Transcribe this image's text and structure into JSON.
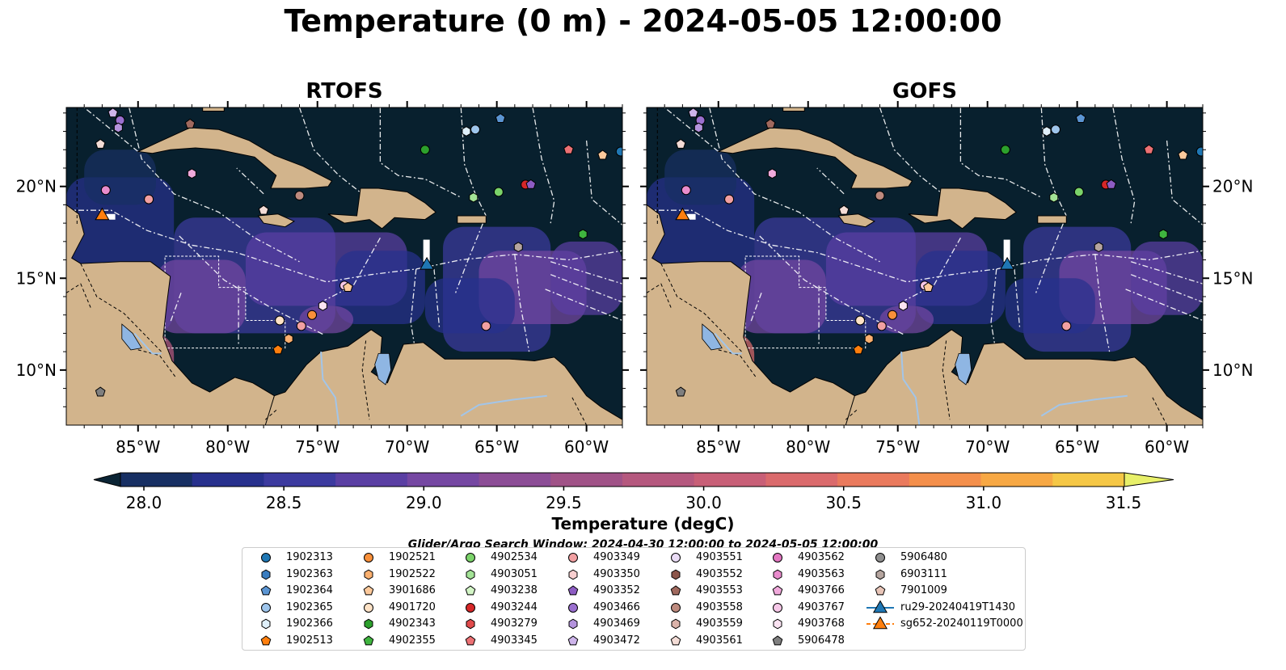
{
  "title": "Temperature (0 m) - 2024-05-05 12:00:00",
  "panels": [
    {
      "name": "rtofs",
      "title": "RTOFS"
    },
    {
      "name": "gofs",
      "title": "GOFS"
    }
  ],
  "map": {
    "lon_range": [
      -89.0,
      -58.0
    ],
    "lat_range": [
      7.0,
      24.3
    ],
    "lon_ticks": [
      "85°W",
      "80°W",
      "75°W",
      "70°W",
      "65°W",
      "60°W"
    ],
    "lon_tick_values": [
      -85,
      -80,
      -75,
      -70,
      -65,
      -60
    ],
    "lat_ticks": [
      "20°N",
      "15°N",
      "10°N"
    ],
    "lat_tick_values": [
      20,
      15,
      10
    ],
    "colors": {
      "ocean_deep": "#08202e",
      "land": "#d2b48c",
      "lake": "#8fb6e3",
      "eez": "#ffffff"
    }
  },
  "colorbar": {
    "label": "Temperature (degC)",
    "min": 28.0,
    "max": 31.5,
    "step": 0.25,
    "ticks": [
      "28.0",
      "28.5",
      "29.0",
      "29.5",
      "30.0",
      "30.5",
      "31.0",
      "31.5"
    ],
    "colors": [
      "#0b2435",
      "#172f63",
      "#27308d",
      "#3c3a9f",
      "#5a3fa3",
      "#7547a2",
      "#8c4d96",
      "#a05287",
      "#b5587e",
      "#c85f77",
      "#da6a6c",
      "#ea7a5d",
      "#f48f4b",
      "#f7a844",
      "#f5c746",
      "#e8f06a"
    ]
  },
  "search_window": "Glider/Argo Search Window: 2024-04-30 12:00:00 to 2024-05-05 12:00:00",
  "legend": [
    {
      "label": "1902313",
      "marker": "circle",
      "color": "#1f77b4"
    },
    {
      "label": "1902363",
      "marker": "hexagon",
      "color": "#3a7dc0"
    },
    {
      "label": "1902364",
      "marker": "pentagon",
      "color": "#5b95d3"
    },
    {
      "label": "1902365",
      "marker": "circle",
      "color": "#9ec5ec"
    },
    {
      "label": "1902366",
      "marker": "hexagon",
      "color": "#dff0fb"
    },
    {
      "label": "1902513",
      "marker": "pentagon",
      "color": "#ff7f0e"
    },
    {
      "label": "1902521",
      "marker": "circle",
      "color": "#f9903a"
    },
    {
      "label": "1902522",
      "marker": "hexagon",
      "color": "#fbb06f"
    },
    {
      "label": "3901686",
      "marker": "pentagon",
      "color": "#fcc99b"
    },
    {
      "label": "4901720",
      "marker": "circle",
      "color": "#fde2c6"
    },
    {
      "label": "4902343",
      "marker": "hexagon",
      "color": "#2ca02c"
    },
    {
      "label": "4902355",
      "marker": "pentagon",
      "color": "#3fb43f"
    },
    {
      "label": "4902534",
      "marker": "circle",
      "color": "#7bd36a"
    },
    {
      "label": "4903051",
      "marker": "hexagon",
      "color": "#a3e396"
    },
    {
      "label": "4903238",
      "marker": "pentagon",
      "color": "#d3f5c6"
    },
    {
      "label": "4903244",
      "marker": "circle",
      "color": "#d62728"
    },
    {
      "label": "4903279",
      "marker": "hexagon",
      "color": "#e04a4b"
    },
    {
      "label": "4903345",
      "marker": "pentagon",
      "color": "#ec7174"
    },
    {
      "label": "4903349",
      "marker": "circle",
      "color": "#f2a0a2"
    },
    {
      "label": "4903350",
      "marker": "hexagon",
      "color": "#f8cfd0"
    },
    {
      "label": "4903352",
      "marker": "pentagon",
      "color": "#8d5cc3"
    },
    {
      "label": "4903466",
      "marker": "circle",
      "color": "#9a6fcf"
    },
    {
      "label": "4903469",
      "marker": "hexagon",
      "color": "#b493dd"
    },
    {
      "label": "4903472",
      "marker": "pentagon",
      "color": "#cdb4ea"
    },
    {
      "label": "4903551",
      "marker": "circle",
      "color": "#eadcf6"
    },
    {
      "label": "4903552",
      "marker": "hexagon",
      "color": "#8c564b"
    },
    {
      "label": "4903553",
      "marker": "pentagon",
      "color": "#a0695e"
    },
    {
      "label": "4903558",
      "marker": "circle",
      "color": "#bd8a7e"
    },
    {
      "label": "4903559",
      "marker": "hexagon",
      "color": "#dbb3aa"
    },
    {
      "label": "4903561",
      "marker": "pentagon",
      "color": "#f3dcd6"
    },
    {
      "label": "4903562",
      "marker": "circle",
      "color": "#e377c2"
    },
    {
      "label": "4903563",
      "marker": "hexagon",
      "color": "#e98ccd"
    },
    {
      "label": "4903766",
      "marker": "pentagon",
      "color": "#f0a9db"
    },
    {
      "label": "4903767",
      "marker": "circle",
      "color": "#f6c8e8"
    },
    {
      "label": "4903768",
      "marker": "hexagon",
      "color": "#fbe3f2"
    },
    {
      "label": "5906478",
      "marker": "pentagon",
      "color": "#7f7f7f"
    },
    {
      "label": "5906480",
      "marker": "circle",
      "color": "#8f8f8f"
    },
    {
      "label": "6903111",
      "marker": "hexagon",
      "color": "#b5a59f"
    },
    {
      "label": "7901009",
      "marker": "pentagon",
      "color": "#e8c5b8"
    },
    {
      "label": "ru29-20240419T1430",
      "marker": "triangle",
      "color": "#1f77b4"
    },
    {
      "label": "sg652-20240119T0000",
      "marker": "triangle",
      "color": "#ff7f0e"
    }
  ],
  "floats": [
    {
      "lon": -86.4,
      "lat": 24.0,
      "marker": "pentagon",
      "color": "#cdb4ea"
    },
    {
      "lon": -86.0,
      "lat": 23.6,
      "marker": "circle",
      "color": "#9a6fcf"
    },
    {
      "lon": -86.1,
      "lat": 23.2,
      "marker": "hexagon",
      "color": "#b493dd"
    },
    {
      "lon": -82.1,
      "lat": 23.4,
      "marker": "pentagon",
      "color": "#a0695e"
    },
    {
      "lon": -87.1,
      "lat": 22.3,
      "marker": "pentagon",
      "color": "#f3dcd6"
    },
    {
      "lon": -82.0,
      "lat": 20.7,
      "marker": "hexagon",
      "color": "#f0a9db"
    },
    {
      "lon": -86.8,
      "lat": 19.8,
      "marker": "circle",
      "color": "#e98ccd"
    },
    {
      "lon": -84.4,
      "lat": 19.3,
      "marker": "circle",
      "color": "#f2a0a2"
    },
    {
      "lon": -76.0,
      "lat": 19.5,
      "marker": "circle",
      "color": "#bd8a7e"
    },
    {
      "lon": -78.0,
      "lat": 18.7,
      "marker": "pentagon",
      "color": "#f3dcd6"
    },
    {
      "lon": -66.7,
      "lat": 23.0,
      "marker": "hexagon",
      "color": "#dff0fb"
    },
    {
      "lon": -66.2,
      "lat": 23.1,
      "marker": "circle",
      "color": "#9ec5ec"
    },
    {
      "lon": -64.8,
      "lat": 23.7,
      "marker": "pentagon",
      "color": "#5b95d3"
    },
    {
      "lon": -69.0,
      "lat": 22.0,
      "marker": "circle",
      "color": "#2ca02c"
    },
    {
      "lon": -66.3,
      "lat": 19.4,
      "marker": "hexagon",
      "color": "#a3e396"
    },
    {
      "lon": -64.9,
      "lat": 19.7,
      "marker": "circle",
      "color": "#7bd36a"
    },
    {
      "lon": -63.4,
      "lat": 20.1,
      "marker": "circle",
      "color": "#d62728"
    },
    {
      "lon": -63.1,
      "lat": 20.1,
      "marker": "pentagon",
      "color": "#8d5cc3"
    },
    {
      "lon": -61.0,
      "lat": 22.0,
      "marker": "pentagon",
      "color": "#ec7174"
    },
    {
      "lon": -59.1,
      "lat": 21.7,
      "marker": "pentagon",
      "color": "#fcc99b"
    },
    {
      "lon": -58.1,
      "lat": 21.9,
      "marker": "circle",
      "color": "#1f77b4"
    },
    {
      "lon": -60.2,
      "lat": 17.4,
      "marker": "hexagon",
      "color": "#3fb43f"
    },
    {
      "lon": -63.8,
      "lat": 16.7,
      "marker": "hexagon",
      "color": "#b5a59f"
    },
    {
      "lon": -73.5,
      "lat": 14.6,
      "marker": "circle",
      "color": "#f6c8e8"
    },
    {
      "lon": -73.3,
      "lat": 14.5,
      "marker": "pentagon",
      "color": "#fcc99b"
    },
    {
      "lon": -74.7,
      "lat": 13.5,
      "marker": "hexagon",
      "color": "#fbe3f2"
    },
    {
      "lon": -75.3,
      "lat": 13.0,
      "marker": "circle",
      "color": "#f9903a"
    },
    {
      "lon": -75.9,
      "lat": 12.4,
      "marker": "circle",
      "color": "#f2a0a2"
    },
    {
      "lon": -77.1,
      "lat": 12.7,
      "marker": "circle",
      "color": "#fde2c6"
    },
    {
      "lon": -76.6,
      "lat": 11.7,
      "marker": "hexagon",
      "color": "#fbb06f"
    },
    {
      "lon": -77.2,
      "lat": 11.1,
      "marker": "pentagon",
      "color": "#ff7f0e"
    },
    {
      "lon": -65.6,
      "lat": 12.4,
      "marker": "circle",
      "color": "#f2a0a2"
    },
    {
      "lon": -87.1,
      "lat": 8.8,
      "marker": "pentagon",
      "color": "#7f7f7f"
    }
  ],
  "gliders": [
    {
      "name": "ru29-20240419T1430",
      "lon": -68.9,
      "lat": 15.7,
      "color": "#1f77b4"
    },
    {
      "name": "sg652-20240119T0000",
      "lon": -87.0,
      "lat": 18.4,
      "color": "#ff7f0e"
    }
  ]
}
